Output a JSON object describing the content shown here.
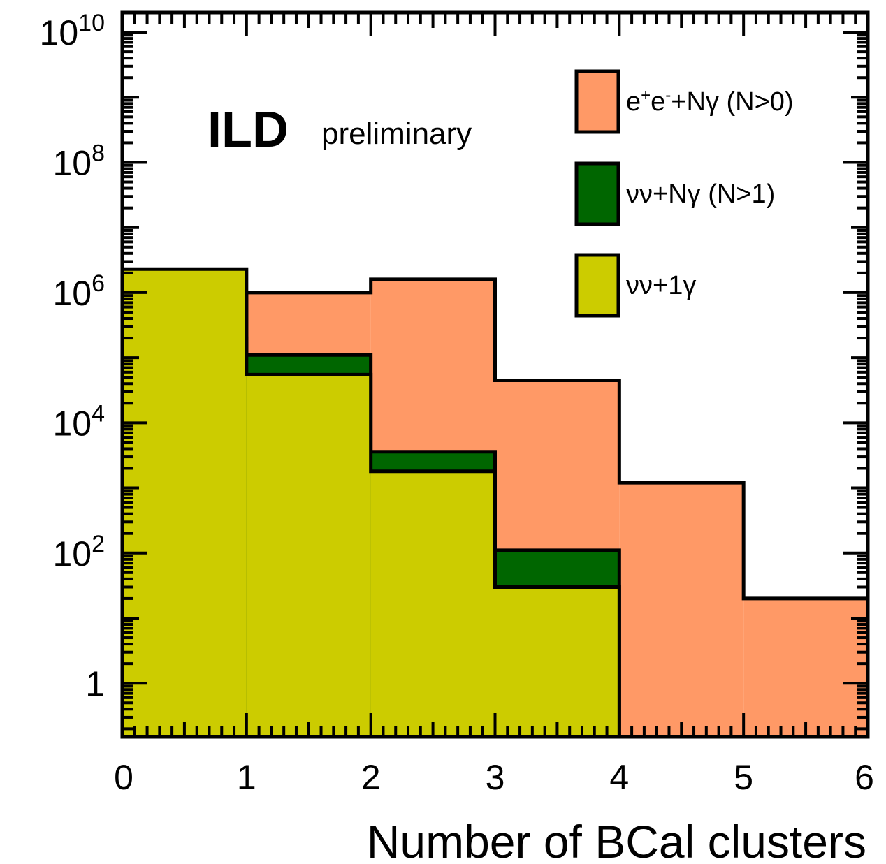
{
  "chart_data": {
    "type": "bar",
    "subtype": "stacked-histogram",
    "title": "ILD",
    "subtitle": "preliminary",
    "xlabel": "Number of BCal clusters",
    "ylabel": "",
    "xlim": [
      0,
      6
    ],
    "ylim": [
      0.15,
      20000000000
    ],
    "y_scale": "log",
    "bin_edges": [
      0,
      1,
      2,
      3,
      4,
      5,
      6
    ],
    "x_ticks": [
      "0",
      "1",
      "2",
      "3",
      "4",
      "5",
      "6"
    ],
    "y_ticks": [
      {
        "value": 1,
        "base": "1",
        "exp": ""
      },
      {
        "value": 100,
        "base": "10",
        "exp": "2"
      },
      {
        "value": 10000,
        "base": "10",
        "exp": "4"
      },
      {
        "value": 1000000,
        "base": "10",
        "exp": "6"
      },
      {
        "value": 100000000,
        "base": "10",
        "exp": "8"
      },
      {
        "value": 10000000000,
        "base": "10",
        "exp": "10"
      }
    ],
    "legend_position": "top-right",
    "series": [
      {
        "name": "e+e-+Nγ (N>0)",
        "color": "#ff9966",
        "values": [
          0.15,
          1000000,
          1600000,
          45000,
          1200,
          20
        ]
      },
      {
        "name": "νν+Nγ (N>1)",
        "color": "#006600",
        "values": [
          200000,
          110000,
          3600,
          110,
          0,
          0
        ]
      },
      {
        "name": "νν+1γ",
        "color": "#cccc00",
        "values": [
          2300000,
          55000,
          1800,
          30,
          0,
          0
        ]
      }
    ],
    "stacked_cumulative": true,
    "legend": [
      {
        "key": "ee",
        "base": "e",
        "sup1": "+",
        "mid": "e",
        "sup2": "-",
        "rest": "+Nγ  (N>0)",
        "color": "#ff9966"
      },
      {
        "key": "nn",
        "text": "νν+Nγ  (N>1)",
        "color": "#006600"
      },
      {
        "key": "n1",
        "text": "νν+1γ",
        "color": "#cccc00"
      }
    ]
  }
}
